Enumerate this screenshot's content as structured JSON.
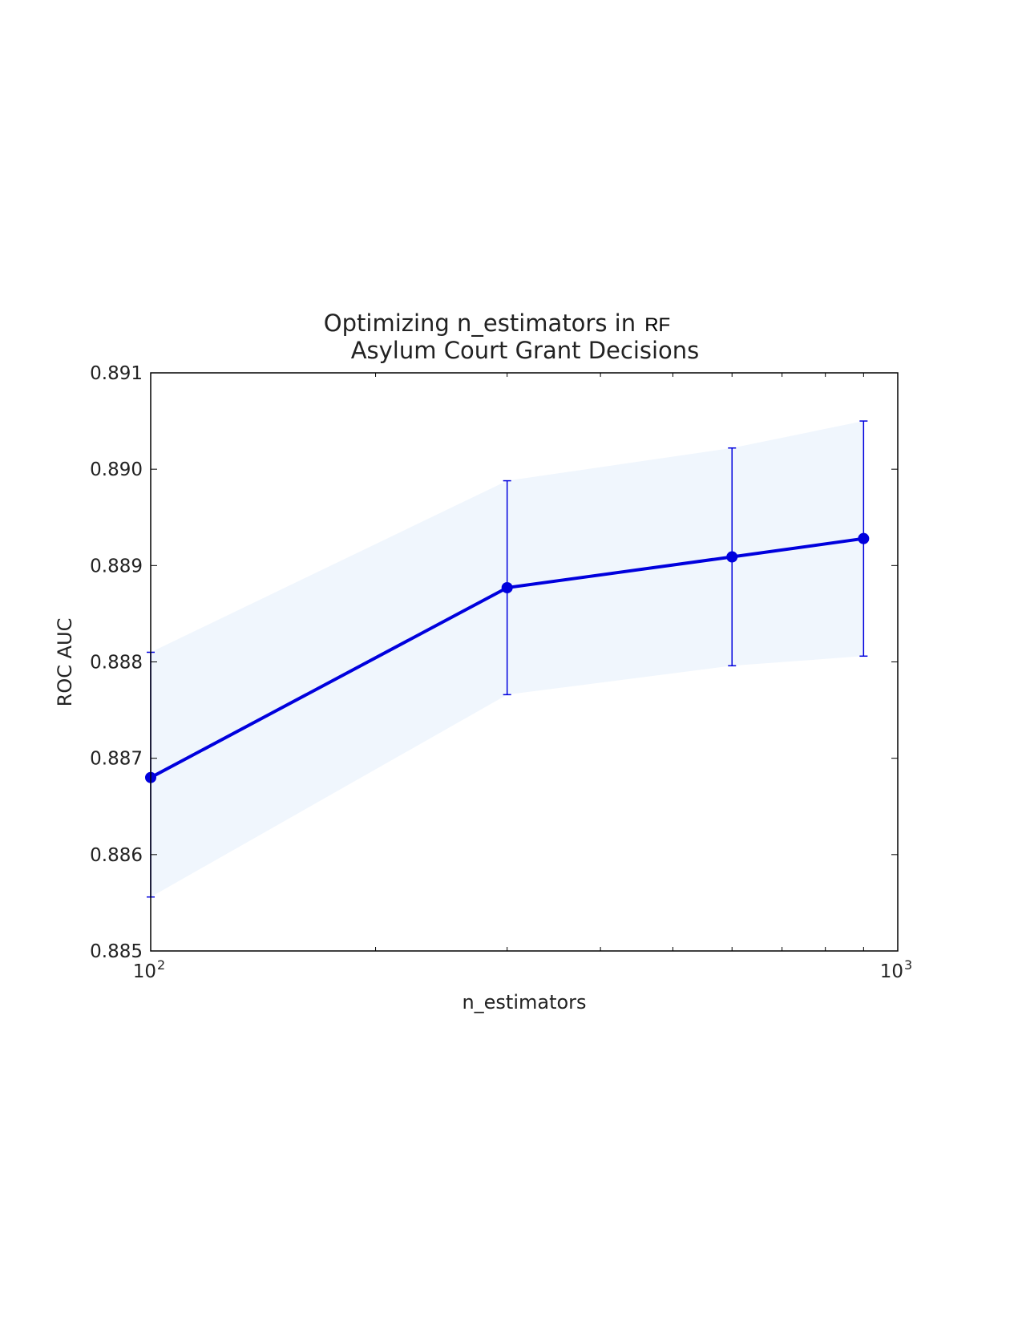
{
  "chart_data": {
    "type": "line",
    "title_prefix": "Optimizing n_estimators in",
    "title_model": "RF",
    "title_line2": "Asylum Court Grant Decisions",
    "xlabel": "n_estimators",
    "ylabel": "ROC AUC",
    "x_scale": "log",
    "xlim": [
      100,
      1000
    ],
    "ylim": [
      0.885,
      0.891
    ],
    "x_ticks": [
      {
        "base": "10",
        "exp": "2"
      },
      {
        "base": "10",
        "exp": "3"
      }
    ],
    "y_ticks": [
      "0.885",
      "0.886",
      "0.887",
      "0.888",
      "0.889",
      "0.890",
      "0.891"
    ],
    "grid": false,
    "series": [
      {
        "x": [
          100,
          300,
          600,
          900
        ],
        "y": [
          0.8868,
          0.88877,
          0.88909,
          0.88928
        ],
        "y_lower": [
          0.88556,
          0.88766,
          0.88796,
          0.88806
        ],
        "y_upper": [
          0.8881,
          0.88988,
          0.89022,
          0.8905
        ],
        "color": "#0000dd",
        "band_color": "#f0f6fd"
      }
    ]
  }
}
